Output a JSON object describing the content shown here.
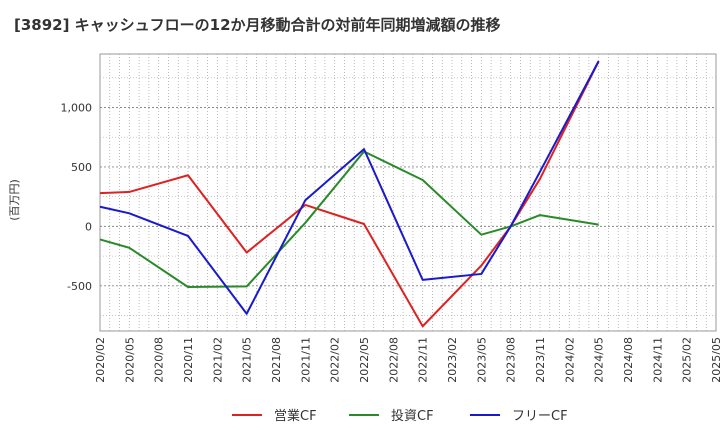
{
  "chart_data": {
    "type": "line",
    "title": "[3892]  キャッシュフローの12か月移動合計の対前年同期増減額の推移",
    "ylabel": "(百万円)",
    "xlabel": "",
    "ylim": [
      -880,
      1450
    ],
    "yticks": [
      1000,
      500,
      0,
      -500
    ],
    "ytick_labels": [
      "1,000",
      "500",
      "0",
      "-500"
    ],
    "categories": [
      "2020/02",
      "2020/05",
      "2020/08",
      "2020/11",
      "2021/02",
      "2021/05",
      "2021/08",
      "2021/11",
      "2022/02",
      "2022/05",
      "2022/08",
      "2022/11",
      "2023/02",
      "2023/05",
      "2023/08",
      "2023/11",
      "2024/02",
      "2024/05",
      "2024/08",
      "2024/11",
      "2025/02",
      "2025/05"
    ],
    "grid": true,
    "legend_position": "bottom",
    "series": [
      {
        "name": "営業CF",
        "color": "#dd2222",
        "points": [
          [
            "2020/02",
            280
          ],
          [
            "2020/05",
            290
          ],
          [
            "2020/11",
            430
          ],
          [
            "2021/05",
            -220
          ],
          [
            "2021/11",
            180
          ],
          [
            "2022/05",
            20
          ],
          [
            "2022/11",
            -840
          ],
          [
            "2023/05",
            -330
          ],
          [
            "2023/08",
            0
          ],
          [
            "2023/11",
            400
          ],
          [
            "2024/05",
            1390
          ]
        ]
      },
      {
        "name": "投資CF",
        "color": "#2a8a2a",
        "points": [
          [
            "2020/02",
            -110
          ],
          [
            "2020/05",
            -180
          ],
          [
            "2020/11",
            -510
          ],
          [
            "2021/05",
            -505
          ],
          [
            "2021/11",
            30
          ],
          [
            "2022/05",
            630
          ],
          [
            "2022/11",
            390
          ],
          [
            "2023/05",
            -70
          ],
          [
            "2023/08",
            0
          ],
          [
            "2023/11",
            95
          ],
          [
            "2024/05",
            15
          ]
        ]
      },
      {
        "name": "フリーCF",
        "color": "#1a1acc",
        "points": [
          [
            "2020/02",
            165
          ],
          [
            "2020/05",
            110
          ],
          [
            "2020/11",
            -80
          ],
          [
            "2021/05",
            -735
          ],
          [
            "2021/11",
            220
          ],
          [
            "2022/05",
            650
          ],
          [
            "2022/11",
            -450
          ],
          [
            "2023/05",
            -400
          ],
          [
            "2023/08",
            0
          ],
          [
            "2023/11",
            460
          ],
          [
            "2024/05",
            1390
          ]
        ]
      }
    ]
  }
}
